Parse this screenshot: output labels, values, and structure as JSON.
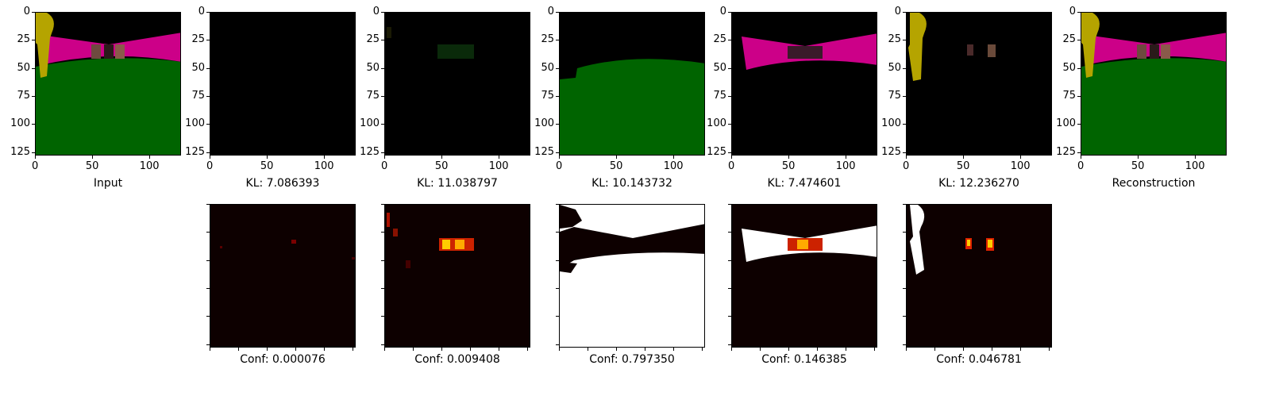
{
  "top_row": [
    {
      "caption": "Input"
    },
    {
      "caption": "KL: 7.086393"
    },
    {
      "caption": "KL: 11.038797"
    },
    {
      "caption": "KL: 10.143732"
    },
    {
      "caption": "KL: 7.474601"
    },
    {
      "caption": "KL: 12.236270"
    },
    {
      "caption": "Reconstruction"
    }
  ],
  "bottom_row": [
    {
      "caption": "Conf: 0.000076"
    },
    {
      "caption": "Conf: 0.009408"
    },
    {
      "caption": "Conf: 0.797350"
    },
    {
      "caption": "Conf: 0.146385"
    },
    {
      "caption": "Conf: 0.046781"
    }
  ],
  "axes": {
    "y_ticks": [
      "0",
      "25",
      "50",
      "75",
      "100",
      "125"
    ],
    "x_ticks": [
      "0",
      "50",
      "100"
    ]
  },
  "colors": {
    "green": "#006400",
    "magenta": "#cc0088",
    "yellow": "#b5a400",
    "black": "#000000",
    "heat_dark": "#0d0000",
    "white": "#ffffff"
  }
}
